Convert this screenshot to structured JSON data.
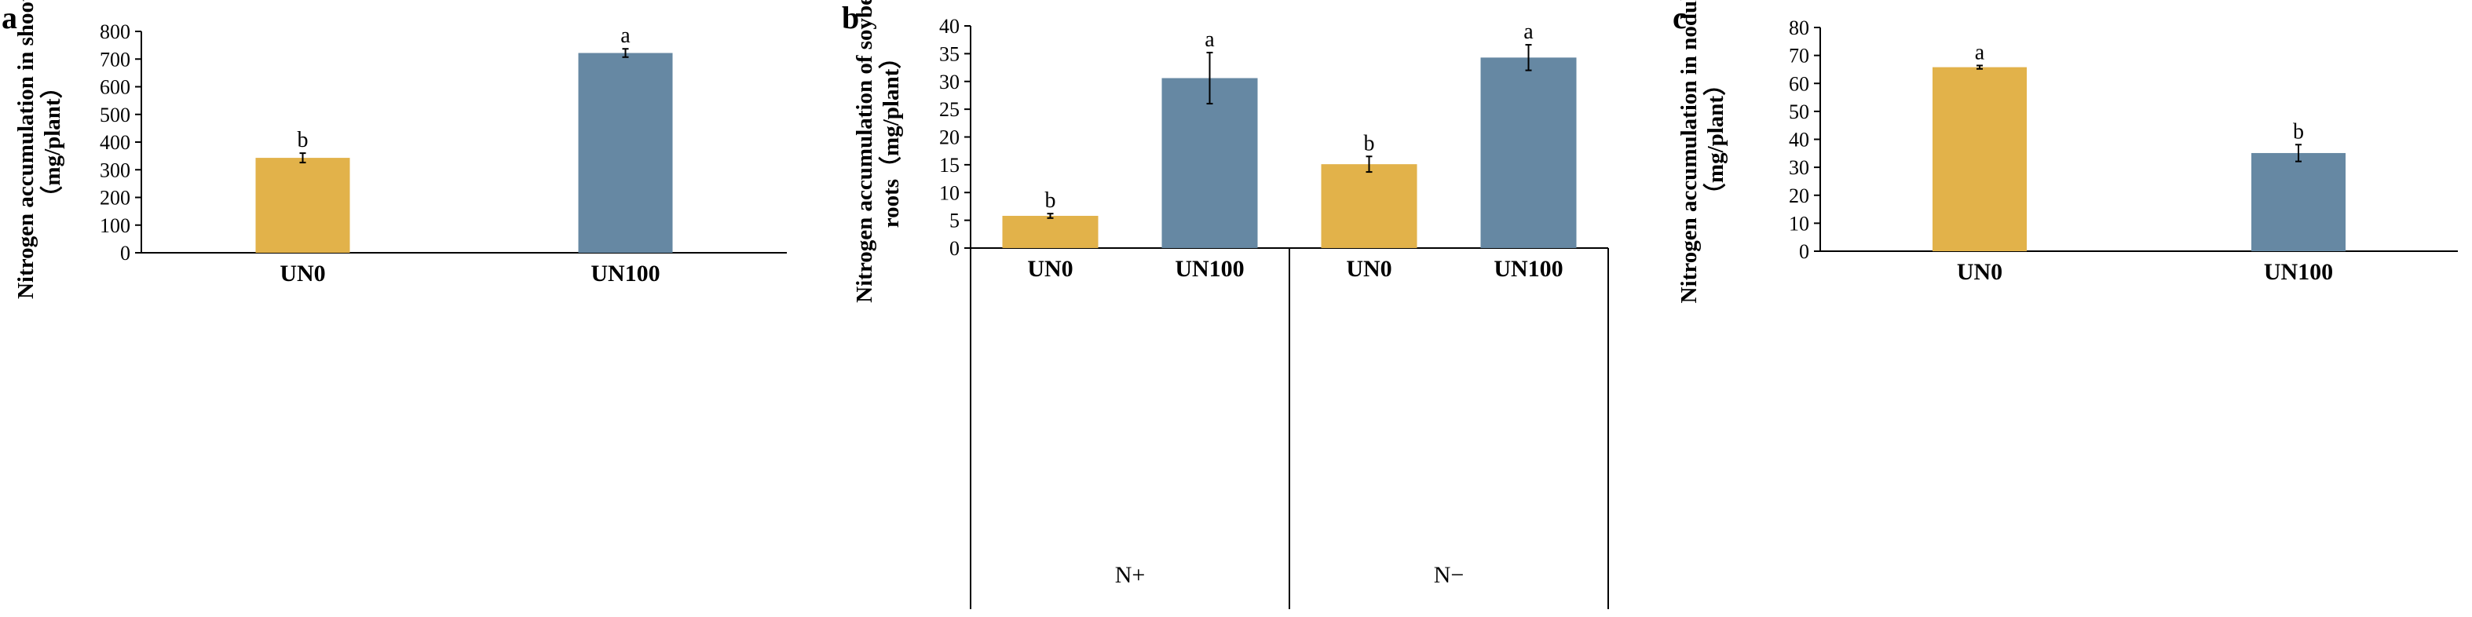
{
  "colors": {
    "UN0": "#E2B24A",
    "UN100": "#6688A3",
    "axis": "#000000"
  },
  "chart_data": [
    {
      "panel": "a",
      "type": "bar",
      "categories": [
        "UN0",
        "UN100"
      ],
      "values": [
        343,
        722
      ],
      "errors": [
        17,
        15
      ],
      "sig": [
        "b",
        "a"
      ],
      "ylabel_lines": [
        "Nitrogen accumulation in shoots",
        "（mg/plant）"
      ],
      "ylim": [
        0,
        800
      ],
      "yticks": [
        0,
        100,
        200,
        300,
        400,
        500,
        600,
        700,
        800
      ]
    },
    {
      "panel": "b",
      "type": "bar",
      "categories": [
        "UN0",
        "UN100",
        "UN0",
        "UN100"
      ],
      "groups": [
        {
          "label": "N+",
          "span": [
            0,
            1
          ]
        },
        {
          "label": "N−",
          "span": [
            2,
            3
          ]
        }
      ],
      "values": [
        5.8,
        30.6,
        15.1,
        34.3
      ],
      "errors": [
        0.4,
        4.6,
        1.4,
        2.3
      ],
      "sig": [
        "b",
        "a",
        "b",
        "a"
      ],
      "ylabel_lines": [
        "Nitrogen accumulation of soybean",
        "roots（mg/plant）"
      ],
      "ylim": [
        0,
        40
      ],
      "yticks": [
        0,
        5,
        10,
        15,
        20,
        25,
        30,
        35,
        40
      ]
    },
    {
      "panel": "c",
      "type": "bar",
      "categories": [
        "UN0",
        "UN100"
      ],
      "values": [
        65.8,
        35.1
      ],
      "errors": [
        0.6,
        3.0
      ],
      "sig": [
        "a",
        "b"
      ],
      "ylabel_lines": [
        "Nitrogen accumulation in nodules",
        "（mg/plant）"
      ],
      "ylim": [
        0,
        80
      ],
      "yticks": [
        0,
        10,
        20,
        30,
        40,
        50,
        60,
        70,
        80
      ]
    }
  ]
}
